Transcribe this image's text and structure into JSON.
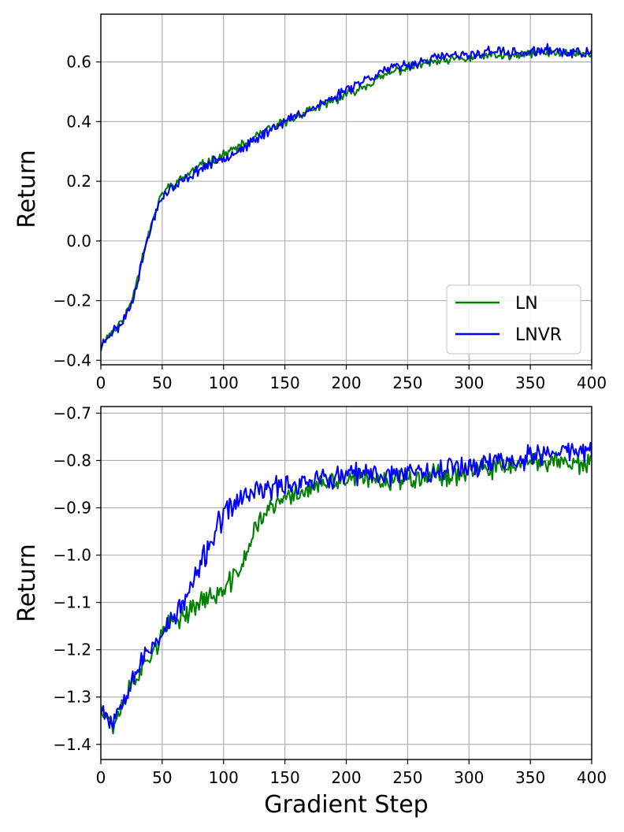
{
  "chart_data": [
    {
      "type": "line",
      "xlabel": "",
      "ylabel": "Return",
      "xlim": [
        0,
        400
      ],
      "ylim": [
        -0.415,
        0.76
      ],
      "xticks": [
        0,
        50,
        100,
        150,
        200,
        250,
        300,
        350,
        400
      ],
      "xtick_labels": [
        "0",
        "50",
        "100",
        "150",
        "200",
        "250",
        "300",
        "350",
        "400"
      ],
      "yticks": [
        -0.4,
        -0.2,
        0.0,
        0.2,
        0.4,
        0.6
      ],
      "ytick_labels": [
        "−0.4",
        "−0.2",
        "0.0",
        "0.2",
        "0.4",
        "0.6"
      ],
      "grid": true,
      "legend": {
        "placement": "lower-right",
        "entries": [
          "LN",
          "LNVR"
        ]
      },
      "x": [
        0,
        5,
        10,
        15,
        20,
        25,
        30,
        35,
        40,
        45,
        50,
        55,
        60,
        70,
        80,
        90,
        100,
        110,
        120,
        130,
        140,
        150,
        160,
        170,
        180,
        190,
        200,
        210,
        220,
        230,
        240,
        250,
        260,
        270,
        280,
        290,
        300,
        310,
        320,
        330,
        340,
        350,
        360,
        370,
        380,
        390,
        400
      ],
      "series": [
        {
          "name": "LN",
          "color": "#008000",
          "noise": 0.012,
          "seed": 11,
          "values": [
            -0.35,
            -0.32,
            -0.3,
            -0.28,
            -0.25,
            -0.2,
            -0.12,
            -0.03,
            0.04,
            0.1,
            0.16,
            0.18,
            0.19,
            0.22,
            0.25,
            0.27,
            0.29,
            0.31,
            0.33,
            0.36,
            0.38,
            0.4,
            0.42,
            0.44,
            0.45,
            0.47,
            0.49,
            0.51,
            0.53,
            0.55,
            0.57,
            0.58,
            0.59,
            0.6,
            0.6,
            0.61,
            0.61,
            0.62,
            0.62,
            0.62,
            0.62,
            0.63,
            0.63,
            0.63,
            0.63,
            0.63,
            0.62
          ]
        },
        {
          "name": "LNVR",
          "color": "#0000ff",
          "noise": 0.014,
          "seed": 23,
          "values": [
            -0.36,
            -0.32,
            -0.3,
            -0.29,
            -0.25,
            -0.21,
            -0.13,
            -0.04,
            0.03,
            0.1,
            0.15,
            0.17,
            0.18,
            0.21,
            0.24,
            0.26,
            0.28,
            0.3,
            0.32,
            0.35,
            0.38,
            0.4,
            0.42,
            0.44,
            0.46,
            0.48,
            0.51,
            0.53,
            0.55,
            0.57,
            0.58,
            0.59,
            0.6,
            0.61,
            0.62,
            0.62,
            0.62,
            0.63,
            0.64,
            0.63,
            0.63,
            0.63,
            0.64,
            0.64,
            0.63,
            0.63,
            0.63
          ]
        }
      ]
    },
    {
      "type": "line",
      "xlabel": "Gradient Step",
      "ylabel": "Return",
      "xlim": [
        0,
        400
      ],
      "ylim": [
        -1.432,
        -0.686
      ],
      "xticks": [
        0,
        50,
        100,
        150,
        200,
        250,
        300,
        350,
        400
      ],
      "xtick_labels": [
        "0",
        "50",
        "100",
        "150",
        "200",
        "250",
        "300",
        "350",
        "400"
      ],
      "yticks": [
        -1.4,
        -1.3,
        -1.2,
        -1.1,
        -1.0,
        -0.9,
        -0.8,
        -0.7
      ],
      "ytick_labels": [
        "−1.4",
        "−1.3",
        "−1.2",
        "−1.1",
        "−1.0",
        "−0.9",
        "−0.8",
        "−0.7"
      ],
      "grid": true,
      "x": [
        0,
        5,
        10,
        15,
        20,
        25,
        30,
        35,
        40,
        45,
        50,
        55,
        60,
        65,
        70,
        75,
        80,
        85,
        90,
        95,
        100,
        105,
        110,
        115,
        120,
        125,
        130,
        140,
        150,
        160,
        170,
        180,
        190,
        200,
        210,
        220,
        230,
        240,
        250,
        260,
        270,
        280,
        290,
        300,
        310,
        320,
        330,
        340,
        350,
        360,
        370,
        380,
        390,
        400
      ],
      "series": [
        {
          "name": "LN",
          "color": "#008000",
          "noise": 0.018,
          "seed": 37,
          "values": [
            -1.31,
            -1.34,
            -1.36,
            -1.33,
            -1.3,
            -1.27,
            -1.25,
            -1.23,
            -1.21,
            -1.19,
            -1.17,
            -1.15,
            -1.14,
            -1.13,
            -1.12,
            -1.11,
            -1.1,
            -1.09,
            -1.09,
            -1.08,
            -1.08,
            -1.06,
            -1.04,
            -1.02,
            -0.99,
            -0.95,
            -0.92,
            -0.9,
            -0.88,
            -0.87,
            -0.86,
            -0.85,
            -0.85,
            -0.84,
            -0.84,
            -0.84,
            -0.84,
            -0.84,
            -0.84,
            -0.83,
            -0.83,
            -0.83,
            -0.83,
            -0.82,
            -0.82,
            -0.82,
            -0.81,
            -0.81,
            -0.81,
            -0.8,
            -0.8,
            -0.8,
            -0.81,
            -0.81
          ]
        },
        {
          "name": "LNVR",
          "color": "#0000ff",
          "noise": 0.02,
          "seed": 53,
          "values": [
            -1.31,
            -1.34,
            -1.35,
            -1.32,
            -1.29,
            -1.26,
            -1.24,
            -1.22,
            -1.2,
            -1.18,
            -1.16,
            -1.15,
            -1.13,
            -1.11,
            -1.09,
            -1.06,
            -1.03,
            -1.0,
            -0.97,
            -0.94,
            -0.92,
            -0.9,
            -0.89,
            -0.88,
            -0.87,
            -0.87,
            -0.86,
            -0.86,
            -0.85,
            -0.85,
            -0.84,
            -0.84,
            -0.84,
            -0.83,
            -0.83,
            -0.83,
            -0.83,
            -0.83,
            -0.82,
            -0.82,
            -0.82,
            -0.82,
            -0.81,
            -0.81,
            -0.81,
            -0.8,
            -0.8,
            -0.8,
            -0.79,
            -0.79,
            -0.78,
            -0.78,
            -0.78,
            -0.78
          ]
        }
      ]
    }
  ]
}
